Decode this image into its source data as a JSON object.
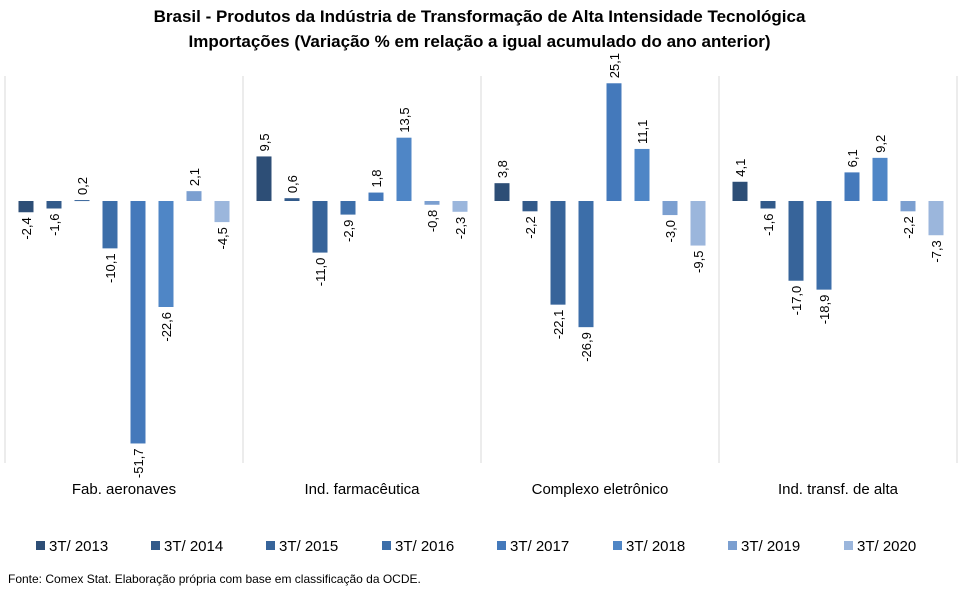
{
  "title_line1": "Brasil - Produtos da Indústria de Transformação  de Alta Intensidade Tecnológica",
  "title_line2": "Importações (Variação % em relação a igual acumulado do ano anterior)",
  "source": "Fonte: Comex Stat. Elaboração própria com base em classificação da OCDE.",
  "chart_data": {
    "type": "bar",
    "categories": [
      "Fab. aeronaves",
      "Ind. farmacêutica",
      "Complexo eletrônico",
      "Ind. transf. de alta"
    ],
    "series": [
      {
        "name": "3T/ 2013",
        "color": "#2d4e76",
        "values": [
          -2.4,
          9.5,
          3.8,
          4.1
        ]
      },
      {
        "name": "3T/ 2014",
        "color": "#325a8a",
        "values": [
          -1.6,
          0.6,
          -2.2,
          -1.6
        ]
      },
      {
        "name": "3T/ 2015",
        "color": "#37649a",
        "values": [
          0.2,
          -11.0,
          -22.1,
          -17.0
        ]
      },
      {
        "name": "3T/ 2016",
        "color": "#3c6ea9",
        "values": [
          -10.1,
          -2.9,
          -26.9,
          -18.9
        ]
      },
      {
        "name": "3T/ 2017",
        "color": "#4479bb",
        "values": [
          -51.7,
          1.8,
          25.1,
          6.1
        ]
      },
      {
        "name": "3T/ 2018",
        "color": "#4f86c6",
        "values": [
          -22.6,
          13.5,
          11.1,
          9.2
        ]
      },
      {
        "name": "3T/ 2019",
        "color": "#7b9fd0",
        "values": [
          2.1,
          -0.8,
          -3.0,
          -2.2
        ]
      },
      {
        "name": "3T/ 2020",
        "color": "#9bb6dc",
        "values": [
          -4.5,
          -2.3,
          -9.5,
          -7.3
        ]
      }
    ],
    "data_labels": [
      [
        "-2,4",
        "9,5",
        "3,8",
        "4,1"
      ],
      [
        "-1,6",
        "0,6",
        "-2,2",
        "-1,6"
      ],
      [
        "0,2",
        "-11,0",
        "-22,1",
        "-17,0"
      ],
      [
        "-10,1",
        "-2,9",
        "-26,9",
        "-18,9"
      ],
      [
        "-51,7",
        "1,8",
        "25,1",
        "6,1"
      ],
      [
        "-22,6",
        "13,5",
        "11,1",
        "9,2"
      ],
      [
        "2,1",
        "-0,8",
        "-3,0",
        "-2,2"
      ],
      [
        "-4,5",
        "-2,3",
        "-9,5",
        "-7,3"
      ]
    ],
    "ylim": [
      -56,
      27
    ],
    "legend_position": "bottom",
    "grid": false
  }
}
